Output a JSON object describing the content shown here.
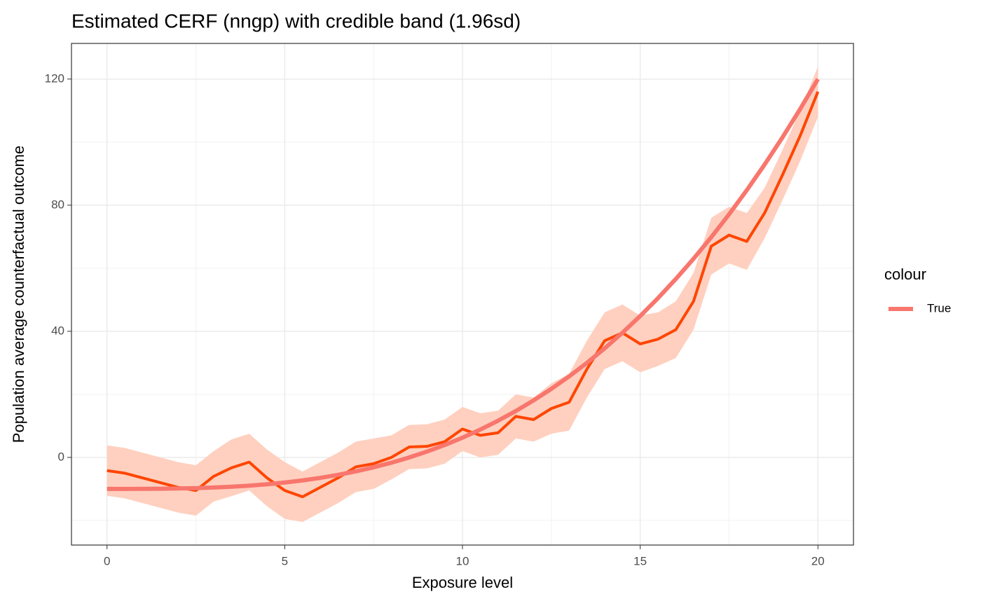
{
  "chart_data": {
    "type": "line",
    "title": "Estimated CERF (nngp) with credible band (1.96sd)",
    "x_label": "Exposure level",
    "y_label": "Population average counterfactual outcome",
    "legend_title": "colour",
    "xlim": [
      -1,
      21
    ],
    "ylim": [
      -27.8,
      131.3
    ],
    "xticks": [
      0,
      5,
      10,
      15,
      20
    ],
    "yticks": [
      0,
      40,
      80,
      120
    ],
    "x_minor_ticks": [
      2.5,
      7.5,
      12.5,
      17.5
    ],
    "y_minor_ticks": [
      -20,
      20,
      60,
      100
    ],
    "grid": true,
    "x": [
      0,
      0.5,
      1,
      1.5,
      2,
      2.5,
      3,
      3.5,
      4,
      4.5,
      5,
      5.5,
      6,
      6.5,
      7,
      7.5,
      8,
      8.5,
      9,
      9.5,
      10,
      10.5,
      11,
      11.5,
      12,
      12.5,
      13,
      13.5,
      14,
      14.5,
      15,
      15.5,
      16,
      16.5,
      17,
      17.5,
      18,
      18.5,
      19,
      19.5,
      20
    ],
    "band": {
      "color": "#FFD0BF",
      "lower": [
        -12.2,
        -13,
        -14.5,
        -16,
        -17.5,
        -18.5,
        -14,
        -12.3,
        -10.5,
        -15.5,
        -19.5,
        -20.5,
        -17.5,
        -14.5,
        -11,
        -10,
        -7,
        -3.7,
        -3.5,
        -2,
        2,
        0,
        0.8,
        6,
        5,
        7.5,
        8.5,
        19,
        28,
        30.5,
        27,
        29,
        31.5,
        40.5,
        58,
        61.5,
        59.5,
        69.5,
        81.5,
        94,
        108
      ],
      "upper": [
        3.8,
        3,
        1.5,
        0,
        -1.5,
        -2.5,
        2,
        5.7,
        7.5,
        2.5,
        -1.5,
        -4.5,
        -1.5,
        1.5,
        5,
        6,
        7,
        10.3,
        10.5,
        12,
        16,
        14,
        14.8,
        20,
        19,
        23.5,
        26.5,
        37,
        46,
        48.5,
        45,
        46,
        49.5,
        58.5,
        76,
        79.5,
        77.5,
        85.5,
        97.5,
        110,
        124
      ]
    },
    "estimate": {
      "color": "#FF4500",
      "values": [
        -4.2,
        -5,
        -6.5,
        -8,
        -9.5,
        -10.5,
        -6,
        -3.3,
        -1.5,
        -6.5,
        -10.5,
        -12.5,
        -9.5,
        -6.5,
        -3,
        -2,
        0,
        3.3,
        3.5,
        5,
        9,
        7,
        7.8,
        13,
        12,
        15.5,
        17.5,
        28,
        37,
        39.5,
        36,
        37.5,
        40.5,
        49.5,
        67,
        70.5,
        68.5,
        77.5,
        89.5,
        102,
        116
      ]
    },
    "series": [
      {
        "name": "True",
        "color": "#F8766D",
        "values": [
          -10,
          -10,
          -9.98,
          -9.93,
          -9.87,
          -9.75,
          -9.56,
          -9.3,
          -8.96,
          -8.52,
          -7.97,
          -7.3,
          -6.49,
          -5.54,
          -4.43,
          -3.14,
          -1.68,
          -0.02,
          1.85,
          3.93,
          6.25,
          8.81,
          11.63,
          14.71,
          18.08,
          21.74,
          25.7,
          29.98,
          34.59,
          39.54,
          44.84,
          50.51,
          56.56,
          63,
          69.84,
          77.09,
          84.77,
          92.89,
          101.46,
          110.49,
          120
        ]
      }
    ]
  }
}
